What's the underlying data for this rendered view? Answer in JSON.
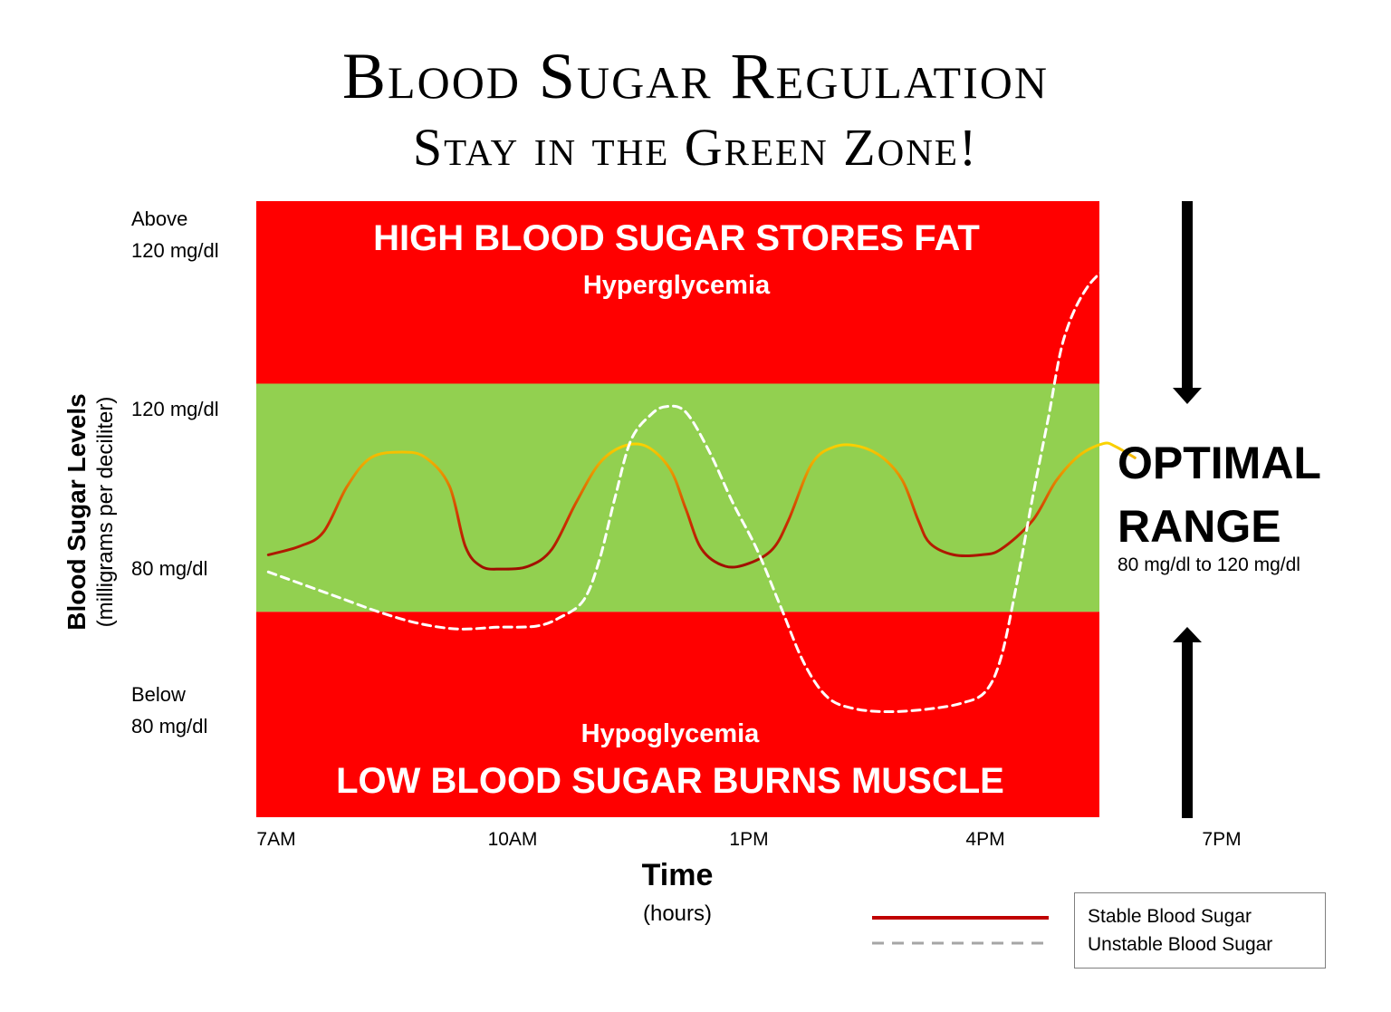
{
  "title": "Blood Sugar Regulation",
  "subtitle": "Stay in the Green Zone!",
  "y_axis": {
    "title": "Blood Sugar Levels",
    "subtitle": "(milligrams per deciliter)",
    "labels": {
      "above_l1": "Above",
      "above_l2": "120 mg/dl",
      "upper": "120 mg/dl",
      "lower": "80 mg/dl",
      "below_l1": "Below",
      "below_l2": "80 mg/dl"
    }
  },
  "x_axis": {
    "title": "Time",
    "subtitle": "(hours)"
  },
  "zones": {
    "high_title": "HIGH BLOOD SUGAR STORES FAT",
    "high_sub": "Hyperglycemia",
    "low_sub": "Hypoglycemia",
    "low_title": "LOW BLOOD SUGAR BURNS MUSCLE"
  },
  "optimal": {
    "line1": "OPTIMAL",
    "line2": "RANGE",
    "range_text": "80 mg/dl to 120 mg/dl"
  },
  "legend": {
    "stable": "Stable Blood Sugar",
    "unstable": "Unstable Blood Sugar"
  },
  "colors": {
    "red_zone": "#ff0000",
    "green_zone": "#92d050",
    "stable_dark": "#8b0000",
    "stable_light": "#ffe600",
    "unstable": "#ffffff",
    "legend_stable": "#c00000",
    "legend_unstable": "#a6a6a6"
  },
  "chart_data": {
    "type": "line",
    "x_unit": "hours from 7AM",
    "tick_labels": [
      "7AM",
      "10AM",
      "1PM",
      "4PM",
      "7PM"
    ],
    "tick_values": [
      0,
      3,
      6,
      9,
      12
    ],
    "xlim": [
      0,
      13.7
    ],
    "ylim": [
      44,
      152
    ],
    "zones": [
      {
        "name": "Hyperglycemia",
        "from": 120,
        "to": 152,
        "color": "#ff0000"
      },
      {
        "name": "Optimal",
        "from": 80,
        "to": 120,
        "color": "#92d050"
      },
      {
        "name": "Hypoglycemia",
        "from": 44,
        "to": 80,
        "color": "#ff0000"
      }
    ],
    "series": [
      {
        "name": "Stable Blood Sugar",
        "style": "solid",
        "points": [
          [
            -0.1,
            90
          ],
          [
            0.3,
            91.5
          ],
          [
            0.6,
            94
          ],
          [
            0.9,
            102
          ],
          [
            1.2,
            107
          ],
          [
            1.6,
            108
          ],
          [
            1.9,
            107
          ],
          [
            2.2,
            102
          ],
          [
            2.4,
            91.5
          ],
          [
            2.6,
            88
          ],
          [
            2.85,
            87.5
          ],
          [
            3.2,
            88
          ],
          [
            3.5,
            91
          ],
          [
            3.8,
            99
          ],
          [
            4.1,
            106
          ],
          [
            4.4,
            109
          ],
          [
            4.7,
            109
          ],
          [
            5.0,
            105
          ],
          [
            5.2,
            98
          ],
          [
            5.4,
            91
          ],
          [
            5.7,
            88
          ],
          [
            6.0,
            88.5
          ],
          [
            6.3,
            91
          ],
          [
            6.5,
            96
          ],
          [
            6.8,
            106
          ],
          [
            7.1,
            109
          ],
          [
            7.4,
            109
          ],
          [
            7.7,
            107
          ],
          [
            7.95,
            103
          ],
          [
            8.15,
            96
          ],
          [
            8.3,
            92
          ],
          [
            8.6,
            90
          ],
          [
            8.95,
            90
          ],
          [
            9.2,
            91
          ],
          [
            9.6,
            96
          ],
          [
            9.9,
            103
          ],
          [
            10.2,
            107.5
          ],
          [
            10.5,
            109.5
          ],
          [
            10.65,
            109
          ],
          [
            10.9,
            107
          ]
        ]
      },
      {
        "name": "Unstable Blood Sugar",
        "style": "dashed",
        "points": [
          [
            -0.1,
            87
          ],
          [
            0.3,
            85
          ],
          [
            0.8,
            82.5
          ],
          [
            1.3,
            80
          ],
          [
            1.8,
            78
          ],
          [
            2.3,
            77
          ],
          [
            2.8,
            77.3
          ],
          [
            3.3,
            77.5
          ],
          [
            3.6,
            79
          ],
          [
            3.9,
            82
          ],
          [
            4.1,
            89
          ],
          [
            4.3,
            100
          ],
          [
            4.5,
            110
          ],
          [
            4.75,
            114.5
          ],
          [
            4.95,
            116
          ],
          [
            5.2,
            115
          ],
          [
            5.5,
            108
          ],
          [
            5.8,
            99
          ],
          [
            6.1,
            91
          ],
          [
            6.4,
            81
          ],
          [
            6.7,
            71
          ],
          [
            7.0,
            65
          ],
          [
            7.35,
            63
          ],
          [
            7.8,
            62.5
          ],
          [
            8.3,
            63
          ],
          [
            8.7,
            64
          ],
          [
            9.0,
            66
          ],
          [
            9.2,
            72
          ],
          [
            9.4,
            85
          ],
          [
            9.6,
            100
          ],
          [
            9.8,
            114
          ],
          [
            10.0,
            128
          ],
          [
            10.3,
            137
          ],
          [
            10.7,
            142
          ],
          [
            11.0,
            145
          ],
          [
            11.3,
            147.5
          ]
        ]
      }
    ]
  }
}
